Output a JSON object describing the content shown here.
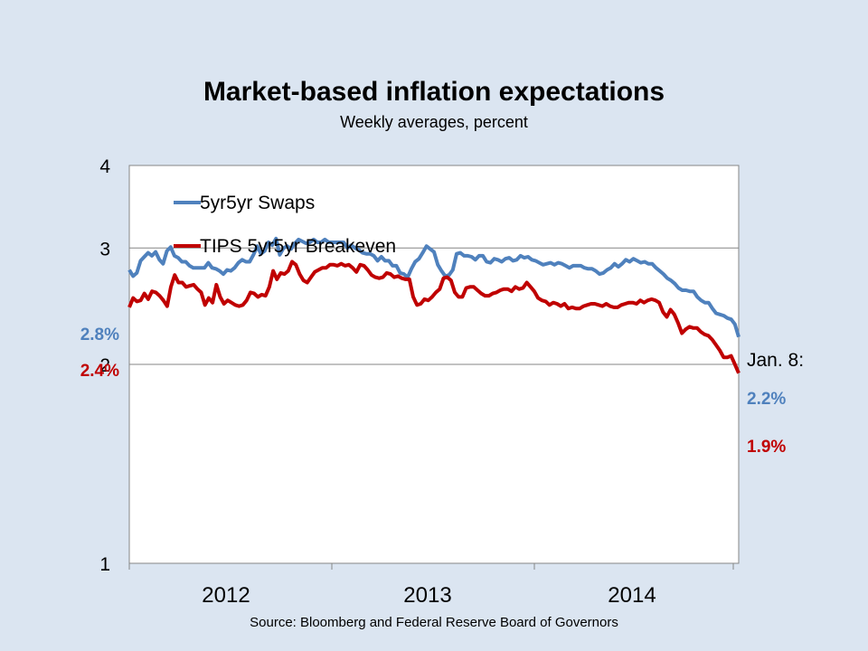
{
  "chart_data": {
    "type": "line",
    "title": "Market-based inflation expectations",
    "subtitle": "Weekly averages, percent",
    "source": "Source: Bloomberg and Federal Reserve Board of Governors",
    "y_scale": "log",
    "ylim": [
      1,
      4
    ],
    "y_ticks": [
      "1",
      "2",
      "3",
      "4"
    ],
    "x_ticks": [
      "2012",
      "2013",
      "2014"
    ],
    "grid": "horizontal",
    "legend_position": "top-left",
    "start_labels": {
      "swaps": "2.8%",
      "tips": "2.4%"
    },
    "end_note": "Jan. 8:",
    "end_labels": {
      "swaps": "2.2%",
      "tips": "1.9%"
    },
    "series": [
      {
        "name": "5yr5yr Swaps",
        "color": "#4f81bd",
        "values": [
          2.78,
          2.72,
          2.75,
          2.87,
          2.91,
          2.95,
          2.92,
          2.96,
          2.88,
          2.84,
          2.97,
          3.01,
          2.92,
          2.9,
          2.86,
          2.86,
          2.82,
          2.8,
          2.8,
          2.8,
          2.8,
          2.85,
          2.8,
          2.79,
          2.77,
          2.74,
          2.78,
          2.77,
          2.8,
          2.85,
          2.88,
          2.86,
          2.86,
          2.93,
          3.02,
          2.94,
          2.97,
          3.06,
          3.03,
          3.1,
          2.93,
          3.0,
          3.02,
          2.99,
          3.05,
          3.09,
          3.07,
          3.05,
          3.06,
          3.09,
          3.06,
          3.06,
          3.09,
          3.06,
          3.06,
          3.06,
          3.06,
          3.06,
          3.0,
          3.03,
          3.0,
          2.98,
          2.95,
          2.94,
          2.94,
          2.92,
          2.87,
          2.91,
          2.87,
          2.87,
          2.82,
          2.82,
          2.75,
          2.74,
          2.71,
          2.79,
          2.86,
          2.89,
          2.95,
          3.02,
          2.99,
          2.96,
          2.83,
          2.77,
          2.72,
          2.73,
          2.78,
          2.94,
          2.95,
          2.92,
          2.92,
          2.91,
          2.88,
          2.92,
          2.92,
          2.86,
          2.85,
          2.89,
          2.88,
          2.86,
          2.89,
          2.9,
          2.87,
          2.88,
          2.92,
          2.9,
          2.91,
          2.88,
          2.87,
          2.85,
          2.83,
          2.84,
          2.85,
          2.83,
          2.85,
          2.84,
          2.82,
          2.8,
          2.82,
          2.82,
          2.82,
          2.8,
          2.79,
          2.79,
          2.77,
          2.74,
          2.75,
          2.78,
          2.8,
          2.84,
          2.81,
          2.84,
          2.88,
          2.86,
          2.89,
          2.87,
          2.85,
          2.86,
          2.84,
          2.84,
          2.8,
          2.77,
          2.74,
          2.7,
          2.68,
          2.65,
          2.61,
          2.59,
          2.59,
          2.58,
          2.58,
          2.53,
          2.5,
          2.48,
          2.48,
          2.43,
          2.39,
          2.38,
          2.37,
          2.35,
          2.34,
          2.3,
          2.2
        ]
      },
      {
        "name": "TIPS 5yr5yr Breakeven",
        "color": "#c00000",
        "values": [
          2.44,
          2.52,
          2.49,
          2.5,
          2.56,
          2.51,
          2.58,
          2.57,
          2.54,
          2.5,
          2.45,
          2.62,
          2.73,
          2.66,
          2.66,
          2.62,
          2.63,
          2.64,
          2.6,
          2.57,
          2.46,
          2.52,
          2.48,
          2.64,
          2.53,
          2.47,
          2.5,
          2.48,
          2.46,
          2.45,
          2.46,
          2.5,
          2.57,
          2.56,
          2.53,
          2.55,
          2.54,
          2.62,
          2.77,
          2.69,
          2.75,
          2.74,
          2.77,
          2.86,
          2.83,
          2.74,
          2.68,
          2.66,
          2.71,
          2.76,
          2.78,
          2.8,
          2.8,
          2.83,
          2.83,
          2.82,
          2.84,
          2.82,
          2.83,
          2.8,
          2.76,
          2.83,
          2.82,
          2.78,
          2.73,
          2.71,
          2.7,
          2.71,
          2.75,
          2.74,
          2.71,
          2.72,
          2.7,
          2.69,
          2.69,
          2.53,
          2.46,
          2.47,
          2.51,
          2.5,
          2.53,
          2.57,
          2.6,
          2.7,
          2.71,
          2.68,
          2.57,
          2.53,
          2.53,
          2.61,
          2.62,
          2.62,
          2.59,
          2.56,
          2.54,
          2.54,
          2.56,
          2.57,
          2.59,
          2.6,
          2.6,
          2.58,
          2.62,
          2.6,
          2.61,
          2.66,
          2.62,
          2.58,
          2.52,
          2.5,
          2.49,
          2.46,
          2.48,
          2.47,
          2.45,
          2.47,
          2.43,
          2.44,
          2.43,
          2.43,
          2.45,
          2.46,
          2.47,
          2.47,
          2.46,
          2.45,
          2.47,
          2.45,
          2.44,
          2.44,
          2.46,
          2.47,
          2.48,
          2.48,
          2.47,
          2.5,
          2.48,
          2.5,
          2.51,
          2.5,
          2.48,
          2.4,
          2.36,
          2.42,
          2.38,
          2.31,
          2.23,
          2.26,
          2.28,
          2.27,
          2.27,
          2.24,
          2.22,
          2.21,
          2.18,
          2.14,
          2.1,
          2.05,
          2.05,
          2.06,
          2.0,
          1.94
        ]
      }
    ]
  }
}
